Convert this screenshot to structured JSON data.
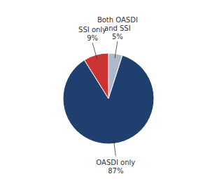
{
  "chart_data": {
    "type": "pie",
    "categories": [
      "Both OASDI\nand SSI",
      "OASDI only",
      "SSI only"
    ],
    "values": [
      5,
      87,
      9
    ],
    "value_labels": [
      "5%",
      "87%",
      "9%"
    ],
    "colors": [
      "#adb9ca",
      "#1f3f6e",
      "#cc3333"
    ],
    "data_labels": true
  }
}
